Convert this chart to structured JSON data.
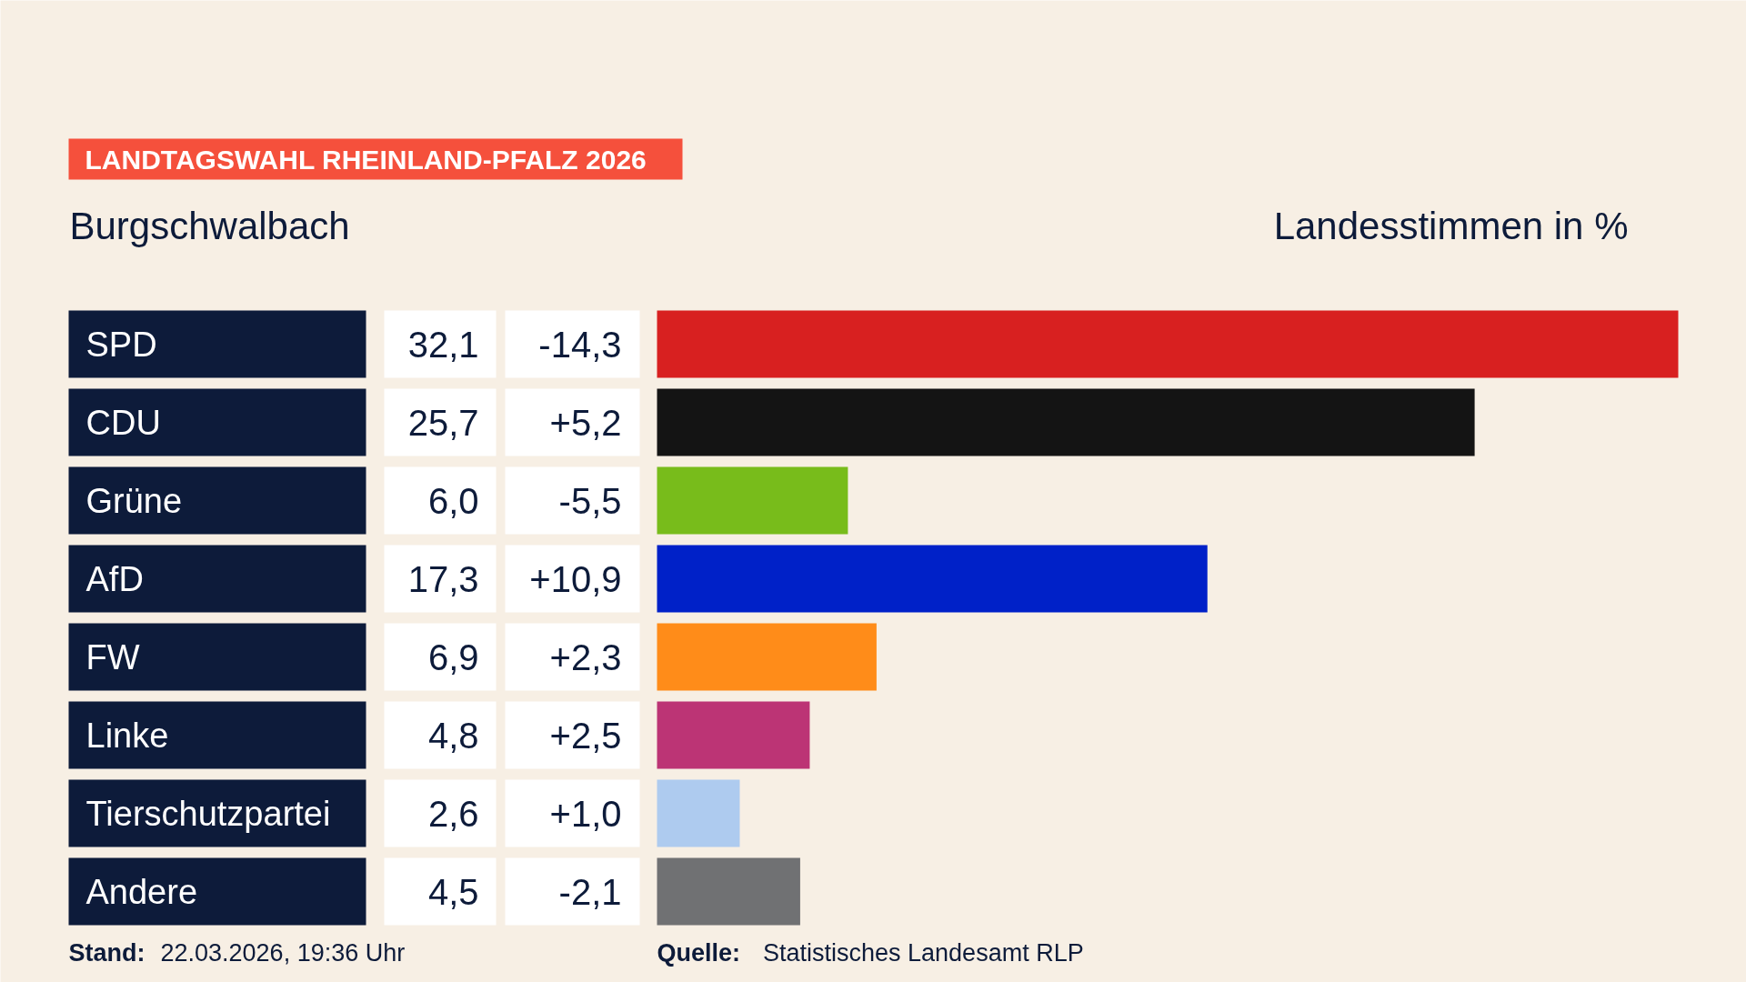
{
  "chart_data": {
    "type": "bar",
    "orientation": "horizontal",
    "title": "LANDTAGSWAHL RHEINLAND-PFALZ 2026",
    "subtitle": "Burgschwalbach",
    "xlabel": "Landesstimmen    in %",
    "categories": [
      "SPD",
      "CDU",
      "Grüne",
      "AfD",
      "FW",
      "Linke",
      "Tierschutzpartei",
      "Andere"
    ],
    "values": [
      32.1,
      25.7,
      6.0,
      17.3,
      6.9,
      4.8,
      2.6,
      4.5
    ],
    "value_labels": [
      "32,1",
      "25,7",
      "6,0",
      "17,3",
      "6,9",
      "4,8",
      "2,6",
      "4,5"
    ],
    "colors": [
      "#d82020",
      "#141414",
      "#78bc1b",
      "#0021c8",
      "#ff8c19",
      "#bc3475",
      "#aecbef",
      "#707173"
    ],
    "annotations": [
      "-14,3",
      "+5,2",
      "-5,5",
      "+10,9",
      "+2,3",
      "+2,5",
      "+1,0",
      "-2,1",
      "Stand: 22.03.2026, 19:36 Uhr",
      "Quelle: Statistisches Landesamt RLP"
    ]
  }
}
